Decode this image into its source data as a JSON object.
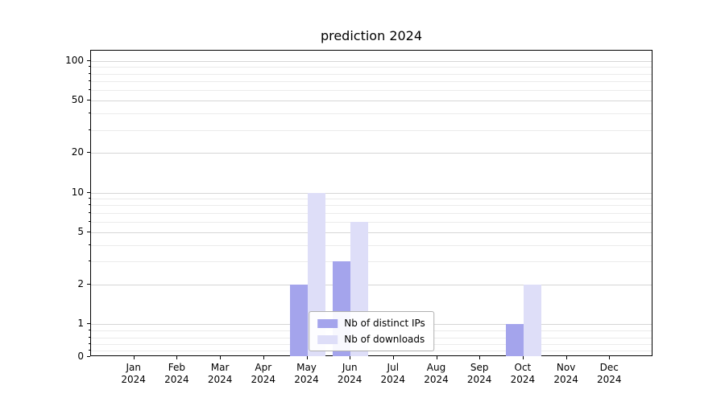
{
  "chart_data": {
    "type": "bar",
    "title": "prediction 2024",
    "x_year": "2024",
    "categories": [
      "Jan",
      "Feb",
      "Mar",
      "Apr",
      "May",
      "Jun",
      "Jul",
      "Aug",
      "Sep",
      "Oct",
      "Nov",
      "Dec"
    ],
    "series": [
      {
        "name": "Nb of distinct IPs",
        "color": "#a4a4ec",
        "values": [
          0,
          0,
          0,
          0,
          2,
          3,
          0,
          0,
          0,
          1,
          0,
          0
        ]
      },
      {
        "name": "Nb of downloads",
        "color": "#dedef8",
        "values": [
          0,
          0,
          0,
          0,
          10,
          6,
          0,
          0,
          0,
          2,
          0,
          0
        ]
      }
    ],
    "yscale": "symlog",
    "ylim": [
      0,
      120
    ],
    "yticks_major": [
      0,
      1,
      2,
      5,
      10,
      20,
      50,
      100
    ],
    "yticks_minor": [
      0.2,
      0.4,
      0.6,
      0.8,
      3,
      4,
      6,
      7,
      8,
      9,
      30,
      40,
      60,
      70,
      80,
      90
    ],
    "grid": "horizontal-only",
    "legend": {
      "position": "lower center"
    }
  }
}
